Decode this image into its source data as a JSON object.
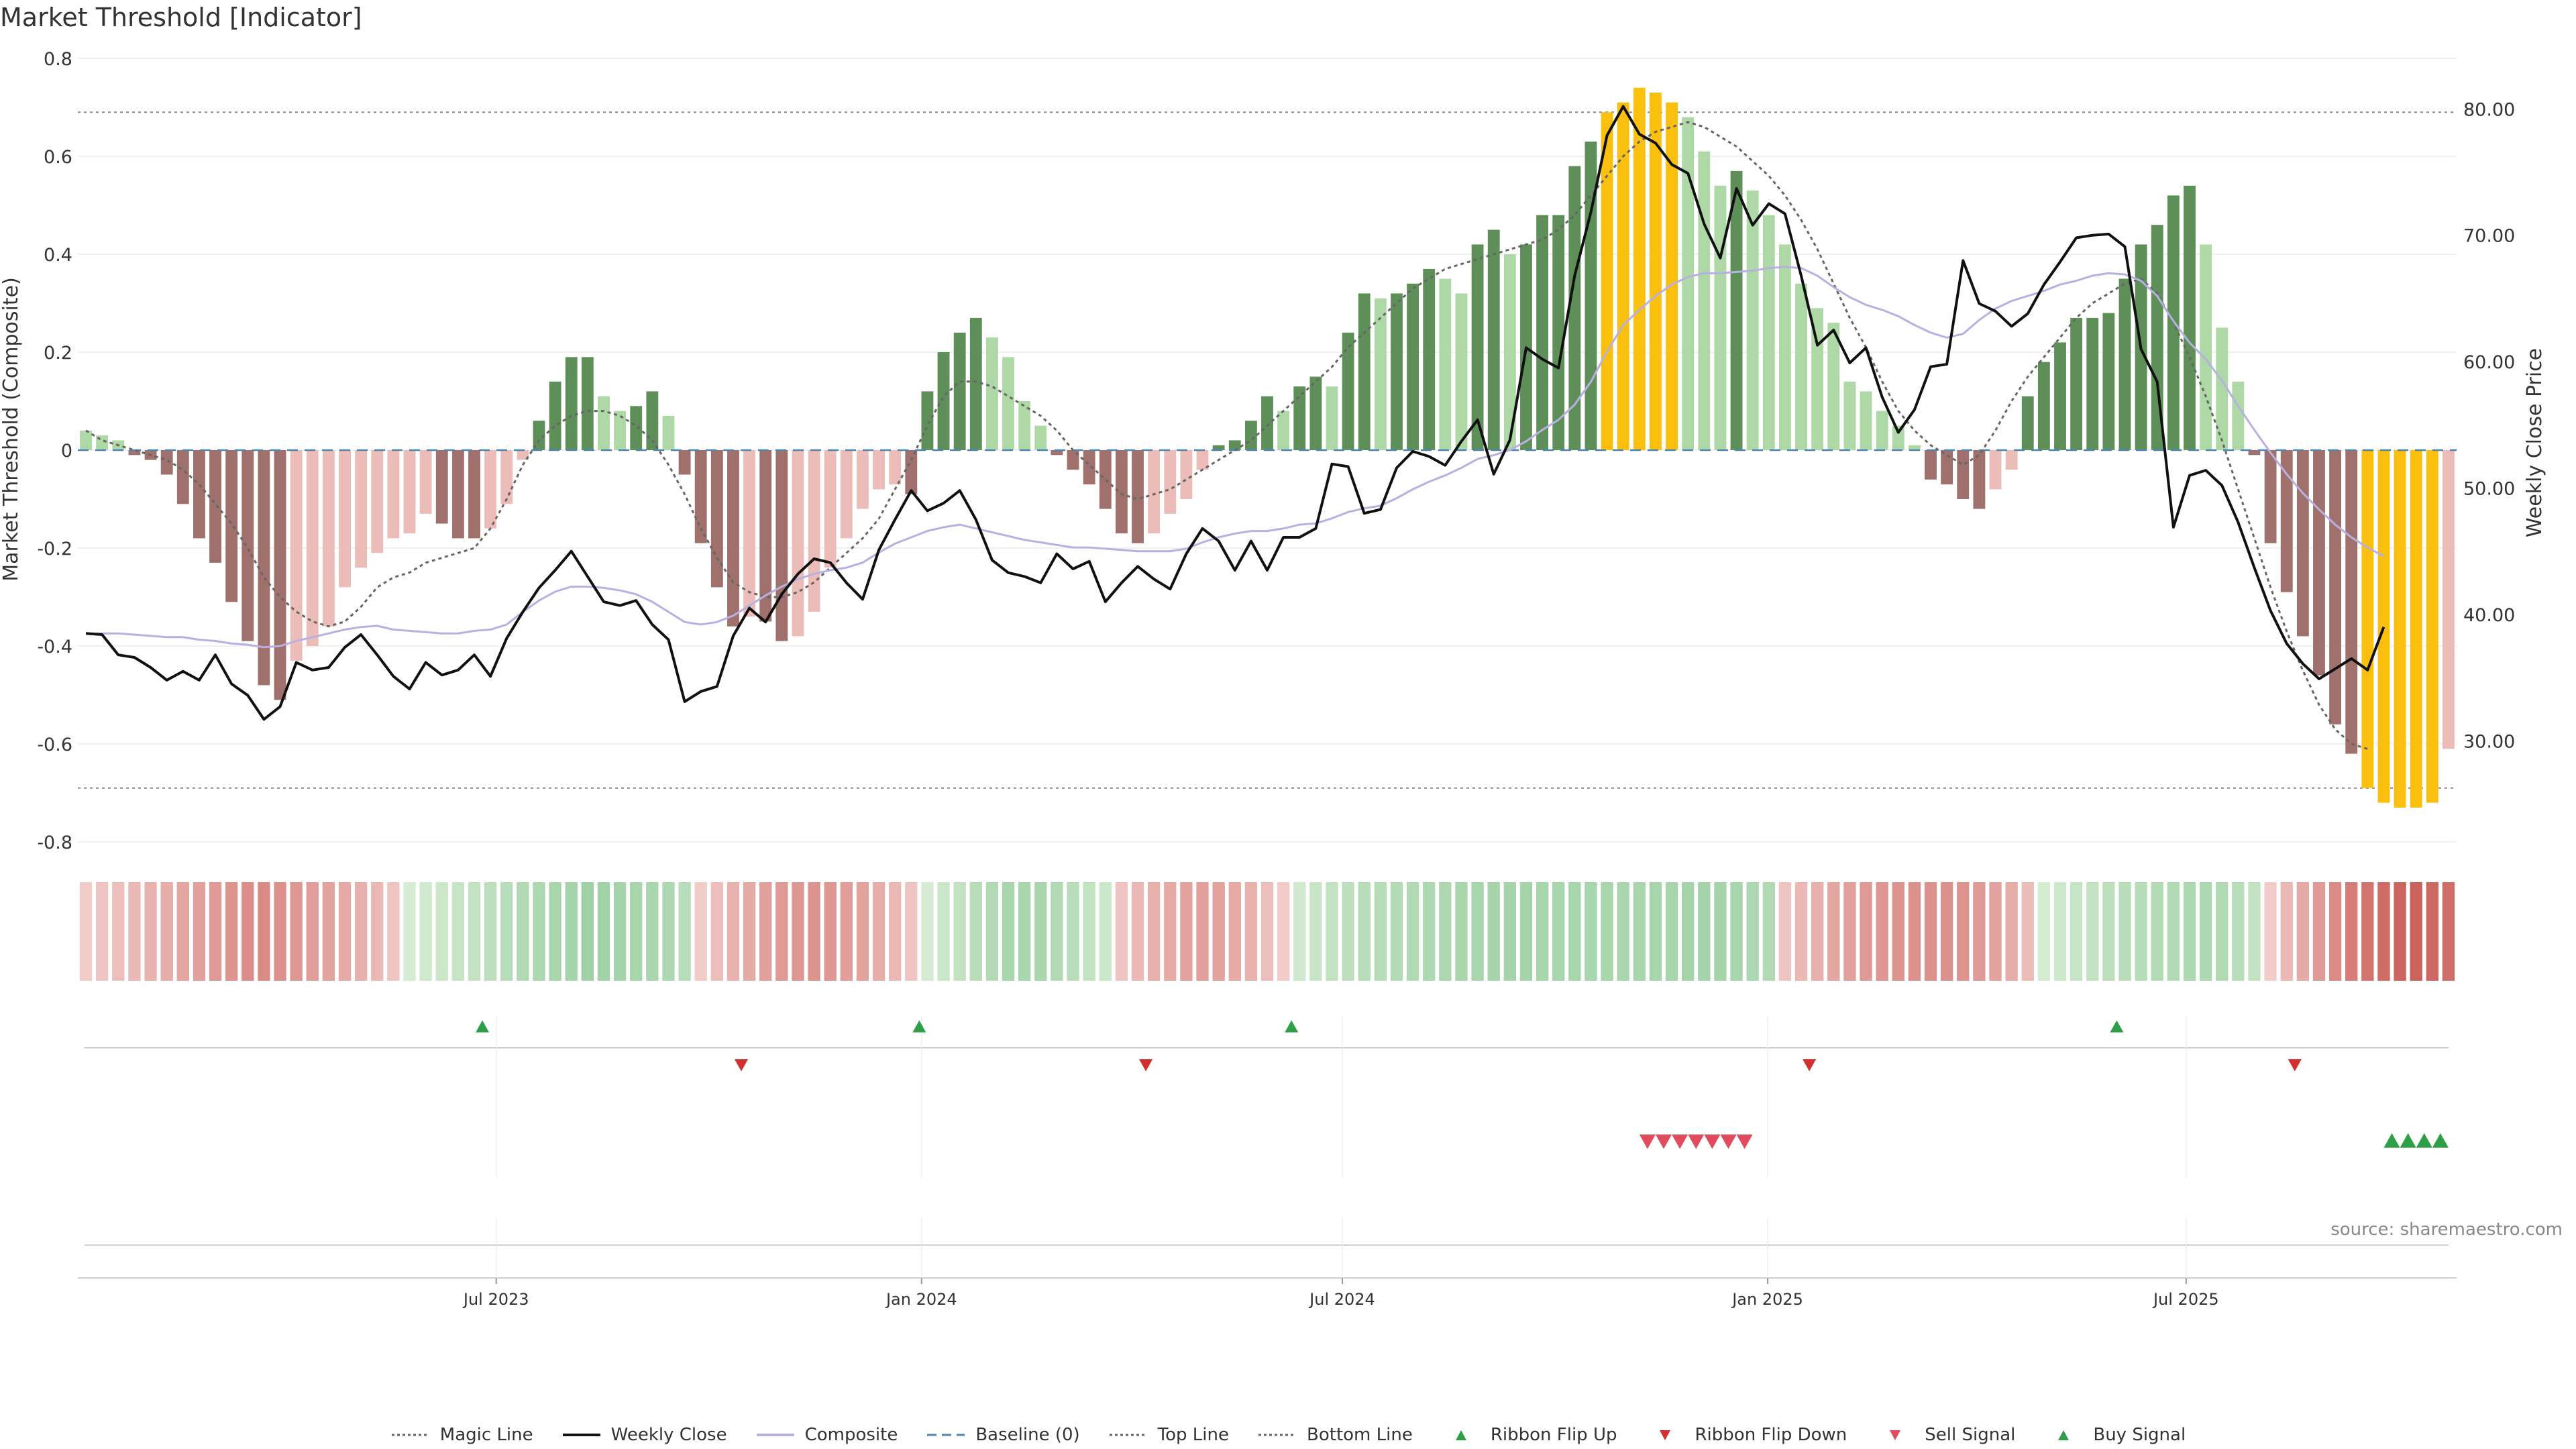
{
  "title": "Market Threshold [Indicator]",
  "source": "source: sharemaestro.com",
  "colors": {
    "bull_strong": "#5e8f59",
    "bull_light": "#aed8a6",
    "bear_strong": "#a0706c",
    "bear_light": "#ecbdb8",
    "extreme": "#fbbf0e",
    "close": "#111111",
    "composite": "#b7b0e0",
    "magic": "#666666",
    "baseline": "#4f86b0",
    "threshold": "#999999",
    "up": "#2e9e47",
    "down": "#d32f2f"
  },
  "chart_data": {
    "type": "bar",
    "left_axis": {
      "label": "Market Threshold (Composite)",
      "ylim": [
        -0.8,
        0.8
      ],
      "ticks": [
        "0.8",
        "0.6",
        "0.4",
        "0.2",
        "0",
        "-0.2",
        "-0.4",
        "-0.6",
        "-0.8"
      ]
    },
    "right_axis": {
      "label": "Weekly Close Price",
      "ylim": [
        22,
        84
      ],
      "ticks": [
        "80.00",
        "70.00",
        "60.00",
        "50.00",
        "40.00",
        "30.00"
      ]
    },
    "x_start": "2023-01-01",
    "x_end": "2025-10-26",
    "x_ticks": [
      "Jul 2023",
      "Jan 2024",
      "Jul 2024",
      "Jan 2025",
      "Jul 2025"
    ],
    "top_line": 0.69,
    "bottom_line": -0.69,
    "baseline": 0,
    "weekly_close": [
      38.5,
      38.4,
      36.8,
      36.6,
      35.8,
      34.8,
      35.5,
      34.8,
      36.8,
      34.5,
      33.6,
      31.7,
      32.7,
      36.2,
      35.6,
      35.8,
      37.4,
      38.4,
      36.8,
      35.1,
      34.1,
      36.2,
      35.2,
      35.6,
      36.8,
      35.1,
      38.1,
      40.2,
      42.1,
      43.5,
      45.0,
      43.0,
      41.0,
      40.7,
      41.1,
      39.2,
      38.0,
      33.1,
      33.9,
      34.3,
      38.3,
      40.5,
      39.4,
      41.6,
      43.2,
      44.4,
      44.1,
      42.5,
      41.2,
      45.1,
      47.5,
      49.8,
      48.2,
      48.8,
      49.8,
      47.5,
      44.3,
      43.3,
      43.0,
      42.5,
      44.8,
      43.6,
      44.2,
      41.0,
      42.5,
      43.8,
      42.8,
      42.0,
      44.8,
      46.8,
      45.8,
      43.5,
      45.8,
      43.5,
      46.1,
      46.1,
      46.8,
      51.9,
      51.7,
      48.0,
      48.3,
      51.6,
      52.9,
      52.5,
      51.8,
      53.7,
      55.4,
      51.1,
      53.8,
      61.1,
      60.2,
      59.5,
      66.8,
      71.8,
      77.9,
      80.2,
      78.0,
      77.3,
      75.6,
      74.9,
      70.9,
      68.2,
      73.7,
      70.8,
      72.5,
      71.7,
      66.8,
      61.3,
      62.5,
      59.9,
      61.1,
      57.2,
      54.4,
      56.2,
      59.6,
      59.8,
      68.0,
      64.6,
      64.0,
      62.8,
      63.8,
      66.1,
      67.9,
      69.8,
      70.0,
      70.1,
      69.1,
      61.0,
      58.4,
      46.9,
      51.0,
      51.4,
      50.2,
      47.3,
      43.7,
      40.3,
      37.7,
      36.1,
      34.9,
      35.7,
      36.5,
      35.6,
      39.0
    ],
    "composite": [
      38.5,
      38.5,
      38.5,
      38.4,
      38.3,
      38.2,
      38.2,
      38.0,
      37.9,
      37.7,
      37.6,
      37.4,
      37.5,
      37.9,
      38.2,
      38.5,
      38.8,
      39.0,
      39.1,
      38.8,
      38.7,
      38.6,
      38.5,
      38.5,
      38.7,
      38.8,
      39.2,
      40.2,
      41.1,
      41.8,
      42.2,
      42.2,
      42.1,
      41.9,
      41.6,
      41.0,
      40.2,
      39.4,
      39.2,
      39.4,
      39.9,
      40.7,
      41.5,
      42.2,
      42.8,
      43.2,
      43.5,
      43.7,
      44.1,
      44.9,
      45.6,
      46.1,
      46.6,
      46.9,
      47.1,
      46.8,
      46.5,
      46.2,
      45.9,
      45.7,
      45.5,
      45.3,
      45.3,
      45.2,
      45.1,
      45.0,
      45.0,
      45.0,
      45.2,
      45.7,
      46.1,
      46.4,
      46.6,
      46.6,
      46.8,
      47.1,
      47.2,
      47.6,
      48.1,
      48.4,
      48.6,
      49.2,
      49.9,
      50.5,
      51.0,
      51.6,
      52.3,
      52.6,
      53.0,
      53.7,
      54.6,
      55.4,
      56.6,
      58.4,
      60.8,
      62.9,
      64.1,
      65.2,
      66.1,
      66.7,
      67.0,
      67.0,
      67.1,
      67.2,
      67.4,
      67.5,
      67.4,
      66.8,
      65.9,
      65.1,
      64.5,
      64.1,
      63.6,
      62.9,
      62.3,
      61.9,
      62.2,
      63.3,
      64.2,
      64.8,
      65.2,
      65.6,
      66.1,
      66.4,
      66.8,
      67.0,
      66.9,
      66.4,
      65.2,
      63.2,
      61.5,
      60.2,
      58.5,
      56.5,
      54.6,
      52.8,
      51.1,
      49.6,
      48.3,
      47.1,
      46.1,
      45.3,
      44.6
    ],
    "magic_line": [
      0.04,
      0.02,
      0.01,
      0.0,
      -0.01,
      -0.02,
      -0.04,
      -0.07,
      -0.11,
      -0.15,
      -0.2,
      -0.26,
      -0.3,
      -0.33,
      -0.35,
      -0.36,
      -0.35,
      -0.32,
      -0.28,
      -0.26,
      -0.25,
      -0.23,
      -0.22,
      -0.21,
      -0.2,
      -0.16,
      -0.1,
      -0.03,
      0.02,
      0.05,
      0.07,
      0.08,
      0.08,
      0.07,
      0.05,
      0.02,
      -0.03,
      -0.09,
      -0.16,
      -0.22,
      -0.27,
      -0.29,
      -0.3,
      -0.3,
      -0.29,
      -0.27,
      -0.24,
      -0.21,
      -0.18,
      -0.14,
      -0.08,
      -0.02,
      0.05,
      0.11,
      0.14,
      0.14,
      0.13,
      0.11,
      0.09,
      0.07,
      0.04,
      0.0,
      -0.03,
      -0.06,
      -0.09,
      -0.1,
      -0.09,
      -0.08,
      -0.06,
      -0.04,
      -0.02,
      0.0,
      0.02,
      0.05,
      0.08,
      0.11,
      0.14,
      0.17,
      0.21,
      0.24,
      0.27,
      0.3,
      0.33,
      0.35,
      0.37,
      0.38,
      0.39,
      0.4,
      0.41,
      0.42,
      0.43,
      0.45,
      0.48,
      0.52,
      0.56,
      0.6,
      0.63,
      0.65,
      0.66,
      0.67,
      0.66,
      0.64,
      0.62,
      0.59,
      0.56,
      0.52,
      0.47,
      0.41,
      0.34,
      0.27,
      0.21,
      0.14,
      0.08,
      0.04,
      0.01,
      -0.01,
      -0.03,
      -0.01,
      0.04,
      0.1,
      0.15,
      0.19,
      0.23,
      0.27,
      0.3,
      0.32,
      0.34,
      0.35,
      0.32,
      0.26,
      0.19,
      0.11,
      0.02,
      -0.08,
      -0.18,
      -0.28,
      -0.37,
      -0.45,
      -0.52,
      -0.57,
      -0.6,
      -0.61
    ],
    "composite_bars": [
      0.04,
      0.03,
      0.02,
      -0.01,
      -0.02,
      -0.05,
      -0.11,
      -0.18,
      -0.23,
      -0.31,
      -0.39,
      -0.48,
      -0.51,
      -0.43,
      -0.4,
      -0.36,
      -0.28,
      -0.24,
      -0.21,
      -0.18,
      -0.17,
      -0.13,
      -0.15,
      -0.18,
      -0.18,
      -0.16,
      -0.11,
      -0.02,
      0.06,
      0.14,
      0.19,
      0.19,
      0.11,
      0.08,
      0.09,
      0.12,
      0.07,
      -0.05,
      -0.19,
      -0.28,
      -0.36,
      -0.34,
      -0.35,
      -0.39,
      -0.38,
      -0.33,
      -0.24,
      -0.18,
      -0.12,
      -0.08,
      -0.07,
      -0.09,
      0.12,
      0.2,
      0.24,
      0.27,
      0.23,
      0.19,
      0.1,
      0.05,
      -0.01,
      -0.04,
      -0.07,
      -0.12,
      -0.17,
      -0.19,
      -0.17,
      -0.13,
      -0.1,
      -0.04,
      0.01,
      0.02,
      0.06,
      0.11,
      0.08,
      0.13,
      0.15,
      0.13,
      0.24,
      0.32,
      0.31,
      0.32,
      0.34,
      0.37,
      0.35,
      0.32,
      0.42,
      0.45,
      0.4,
      0.42,
      0.48,
      0.48,
      0.58,
      0.63,
      0.69,
      0.71,
      0.74,
      0.73,
      0.71,
      0.68,
      0.61,
      0.54,
      0.57,
      0.53,
      0.48,
      0.42,
      0.34,
      0.29,
      0.26,
      0.14,
      0.12,
      0.08,
      0.05,
      0.01,
      -0.06,
      -0.07,
      -0.1,
      -0.12,
      -0.08,
      -0.04,
      0.11,
      0.18,
      0.22,
      0.27,
      0.27,
      0.28,
      0.35,
      0.42,
      0.46,
      0.52,
      0.54,
      0.42,
      0.25,
      0.14,
      -0.01,
      -0.19,
      -0.29,
      -0.38,
      -0.46,
      -0.56,
      -0.62,
      -0.69,
      -0.72,
      -0.73,
      -0.73,
      -0.72,
      -0.61
    ],
    "ribbon": [
      -0.08,
      -0.12,
      -0.16,
      -0.2,
      -0.24,
      -0.28,
      -0.32,
      -0.36,
      -0.4,
      -0.44,
      -0.48,
      -0.5,
      -0.46,
      -0.42,
      -0.38,
      -0.34,
      -0.3,
      -0.26,
      -0.2,
      -0.12,
      0.06,
      0.1,
      0.14,
      0.18,
      0.22,
      0.26,
      0.3,
      0.36,
      0.4,
      0.42,
      0.46,
      0.5,
      0.48,
      0.46,
      0.44,
      0.42,
      0.38,
      0.3,
      -0.08,
      -0.16,
      -0.24,
      -0.3,
      -0.36,
      -0.4,
      -0.42,
      -0.44,
      -0.42,
      -0.38,
      -0.34,
      -0.28,
      -0.2,
      -0.12,
      0.06,
      0.14,
      0.22,
      0.3,
      0.36,
      0.42,
      0.44,
      0.42,
      0.36,
      0.3,
      0.22,
      0.14,
      -0.12,
      -0.2,
      -0.26,
      -0.3,
      -0.34,
      -0.36,
      -0.34,
      -0.3,
      -0.24,
      -0.16,
      -0.08,
      0.1,
      0.16,
      0.22,
      0.26,
      0.3,
      0.32,
      0.34,
      0.36,
      0.38,
      0.4,
      0.42,
      0.44,
      0.46,
      0.46,
      0.46,
      0.44,
      0.44,
      0.44,
      0.44,
      0.42,
      0.42,
      0.42,
      0.44,
      0.44,
      0.46,
      0.46,
      0.46,
      0.44,
      0.4,
      0.36,
      -0.12,
      -0.2,
      -0.26,
      -0.32,
      -0.36,
      -0.4,
      -0.42,
      -0.44,
      -0.46,
      -0.46,
      -0.46,
      -0.44,
      -0.4,
      -0.34,
      -0.28,
      -0.18,
      0.06,
      0.12,
      0.18,
      0.22,
      0.26,
      0.3,
      0.32,
      0.34,
      0.36,
      0.38,
      0.38,
      0.36,
      0.3,
      0.22,
      -0.08,
      -0.2,
      -0.3,
      -0.4,
      -0.5,
      -0.58,
      -0.64,
      -0.7,
      -0.74,
      -0.76,
      -0.72,
      -0.68
    ],
    "ribbon_flip_up": [
      "2023-06-25",
      "2023-12-31",
      "2024-06-09",
      "2025-06-01"
    ],
    "ribbon_flip_down": [
      "2023-10-15",
      "2024-04-07",
      "2025-01-19",
      "2025-08-17"
    ],
    "sell_signal": [
      "2024-11-10",
      "2024-11-17",
      "2024-11-24",
      "2024-12-01",
      "2024-12-08",
      "2024-12-15",
      "2024-12-22"
    ],
    "buy_signal": [
      "2025-09-28",
      "2025-10-05",
      "2025-10-12",
      "2025-10-19"
    ]
  },
  "legend": [
    {
      "label": "Magic Line",
      "icon": "dotted-line"
    },
    {
      "label": "Weekly Close",
      "icon": "solid-line"
    },
    {
      "label": "Composite",
      "icon": "purple-line"
    },
    {
      "label": "Baseline (0)",
      "icon": "dashed-line"
    },
    {
      "label": "Top Line",
      "icon": "dotted-line"
    },
    {
      "label": "Bottom Line",
      "icon": "dotted-line"
    },
    {
      "label": "Ribbon Flip Up",
      "icon": "triangle-up-icon"
    },
    {
      "label": "Ribbon Flip Down",
      "icon": "triangle-down-icon"
    },
    {
      "label": "Sell Signal",
      "icon": "triangle-down-icon"
    },
    {
      "label": "Buy Signal",
      "icon": "triangle-up-icon"
    }
  ]
}
